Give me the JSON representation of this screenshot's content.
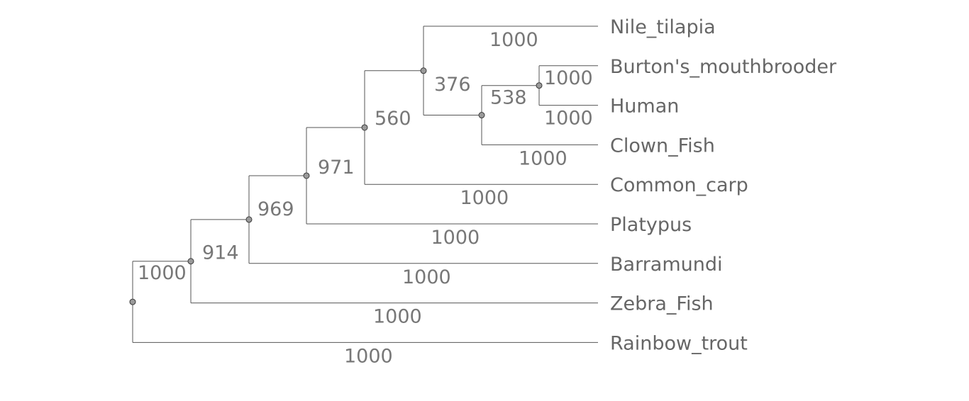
{
  "tree": {
    "leaves": [
      {
        "id": "nile",
        "name": "Nile_tilapia",
        "support": "1000"
      },
      {
        "id": "burton",
        "name": "Burton's_mouthbrooder",
        "support": "1000"
      },
      {
        "id": "human",
        "name": "Human",
        "support": "1000"
      },
      {
        "id": "clown",
        "name": "Clown_Fish",
        "support": "1000"
      },
      {
        "id": "carp",
        "name": "Common_carp",
        "support": "1000"
      },
      {
        "id": "platypus",
        "name": "Platypus",
        "support": "1000"
      },
      {
        "id": "barramundi",
        "name": "Barramundi",
        "support": "1000"
      },
      {
        "id": "zebra",
        "name": "Zebra_Fish",
        "support": "1000"
      },
      {
        "id": "trout",
        "name": "Rainbow_trout",
        "support": "1000"
      }
    ],
    "internal_nodes": [
      {
        "id": "n_burton_human",
        "children": [
          "burton",
          "human"
        ],
        "support": ""
      },
      {
        "id": "n_clown_group",
        "children": [
          "n_burton_human",
          "clown"
        ],
        "support": "538"
      },
      {
        "id": "n_nile_group",
        "children": [
          "nile",
          "n_clown_group"
        ],
        "support": "376"
      },
      {
        "id": "n_carp_group",
        "children": [
          "n_nile_group",
          "carp"
        ],
        "support": "560"
      },
      {
        "id": "n_platypus_group",
        "children": [
          "n_carp_group",
          "platypus"
        ],
        "support": "971"
      },
      {
        "id": "n_barra_group",
        "children": [
          "n_platypus_group",
          "barramundi"
        ],
        "support": "969"
      },
      {
        "id": "n_zebra_group",
        "children": [
          "n_barra_group",
          "zebra"
        ],
        "support": "914"
      },
      {
        "id": "root",
        "children": [
          "n_zebra_group",
          "trout"
        ],
        "support": "1000"
      }
    ]
  }
}
